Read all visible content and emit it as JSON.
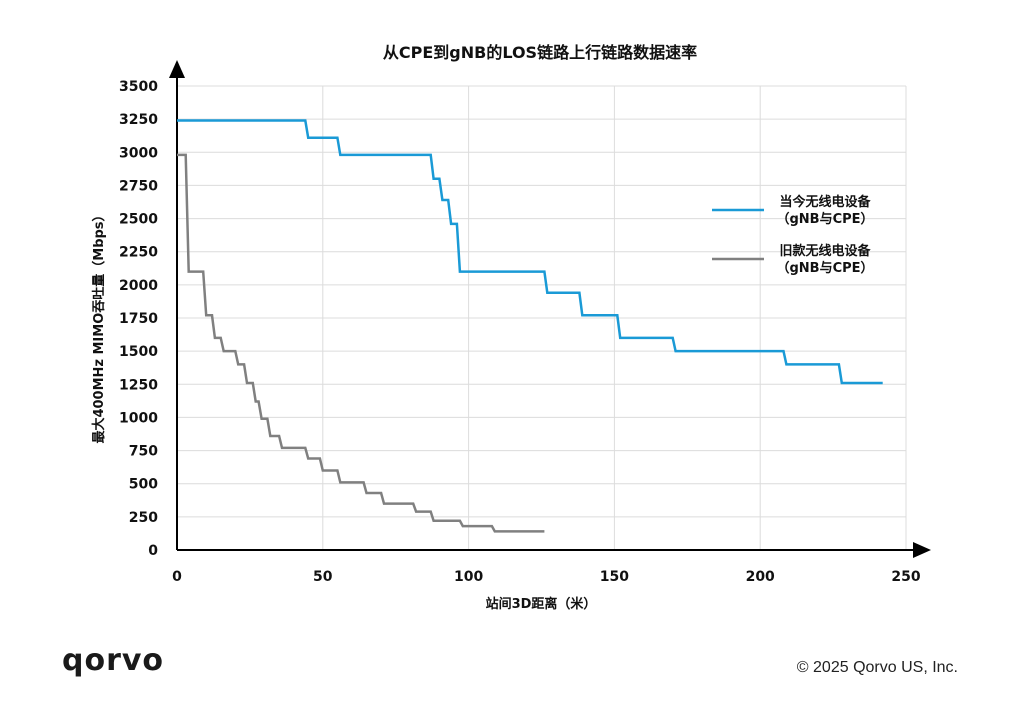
{
  "chart_data": {
    "type": "line",
    "title": "从CPE到gNB的LOS链路上行链路数据速率",
    "xlabel": "站间3D距离（米）",
    "ylabel": "最大400MHz MIMO吞吐量（Mbps）",
    "xlim": [
      0,
      250
    ],
    "ylim": [
      0,
      3500
    ],
    "x_ticks": [
      0,
      50,
      100,
      150,
      200,
      250
    ],
    "y_ticks": [
      0,
      250,
      500,
      750,
      1000,
      1250,
      1500,
      1750,
      2000,
      2250,
      2500,
      2750,
      3000,
      3250,
      3500
    ],
    "grid": true,
    "legend_position": "right",
    "series": [
      {
        "name": "当今无线电设备",
        "name_line2": "（gNB与CPE）",
        "color": "#1a9ad6",
        "points": [
          [
            0,
            3240
          ],
          [
            44,
            3240
          ],
          [
            45,
            3110
          ],
          [
            55,
            3110
          ],
          [
            56,
            2980
          ],
          [
            87,
            2980
          ],
          [
            88,
            2800
          ],
          [
            90,
            2800
          ],
          [
            91,
            2640
          ],
          [
            93,
            2640
          ],
          [
            94,
            2460
          ],
          [
            96,
            2460
          ],
          [
            97,
            2100
          ],
          [
            126,
            2100
          ],
          [
            127,
            1940
          ],
          [
            138,
            1940
          ],
          [
            139,
            1770
          ],
          [
            151,
            1770
          ],
          [
            152,
            1600
          ],
          [
            170,
            1600
          ],
          [
            171,
            1500
          ],
          [
            208,
            1500
          ],
          [
            209,
            1400
          ],
          [
            227,
            1400
          ],
          [
            228,
            1260
          ],
          [
            242,
            1260
          ]
        ]
      },
      {
        "name": "旧款无线电设备",
        "name_line2": "（gNB与CPE）",
        "color": "#808080",
        "points": [
          [
            0,
            2980
          ],
          [
            3,
            2980
          ],
          [
            4,
            2100
          ],
          [
            9,
            2100
          ],
          [
            10,
            1770
          ],
          [
            12,
            1770
          ],
          [
            13,
            1600
          ],
          [
            15,
            1600
          ],
          [
            16,
            1500
          ],
          [
            20,
            1500
          ],
          [
            21,
            1400
          ],
          [
            23,
            1400
          ],
          [
            24,
            1260
          ],
          [
            26,
            1260
          ],
          [
            27,
            1120
          ],
          [
            28,
            1120
          ],
          [
            29,
            990
          ],
          [
            31,
            990
          ],
          [
            32,
            860
          ],
          [
            35,
            860
          ],
          [
            36,
            770
          ],
          [
            44,
            770
          ],
          [
            45,
            690
          ],
          [
            49,
            690
          ],
          [
            50,
            600
          ],
          [
            55,
            600
          ],
          [
            56,
            510
          ],
          [
            64,
            510
          ],
          [
            65,
            430
          ],
          [
            70,
            430
          ],
          [
            71,
            350
          ],
          [
            81,
            350
          ],
          [
            82,
            290
          ],
          [
            87,
            290
          ],
          [
            88,
            220
          ],
          [
            97,
            220
          ],
          [
            98,
            180
          ],
          [
            108,
            180
          ],
          [
            109,
            140
          ],
          [
            126,
            140
          ]
        ]
      }
    ]
  },
  "footer": {
    "logo": "qorvo",
    "copyright": "© 2025 Qorvo US, Inc."
  }
}
